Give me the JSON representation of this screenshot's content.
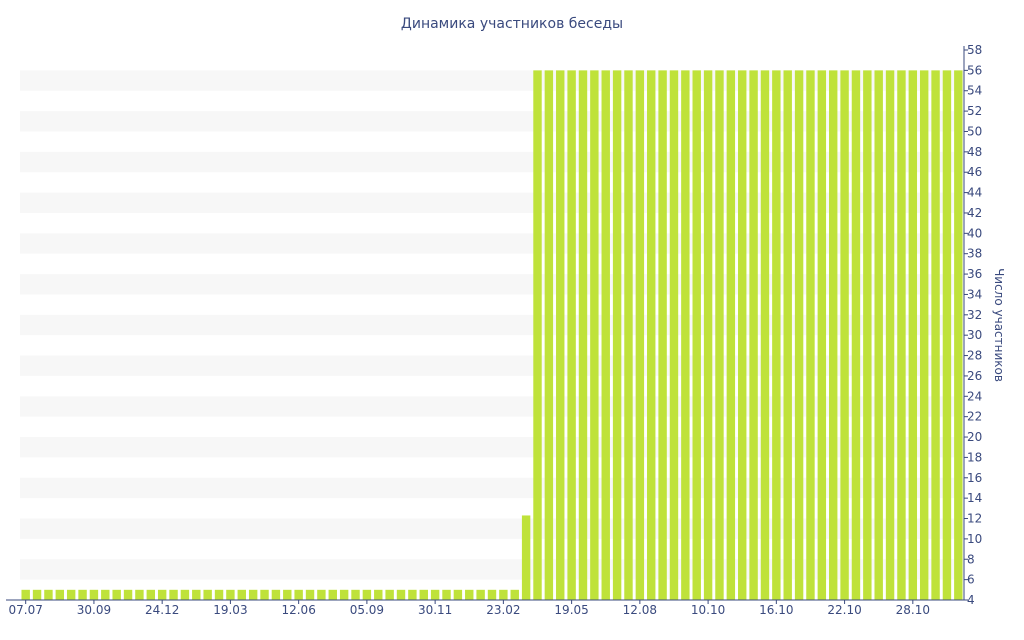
{
  "chart_data": {
    "type": "bar",
    "title": "Динамика участников беседы",
    "ylabel": "Число участников",
    "xlabel": "",
    "ylim": [
      4,
      58
    ],
    "yticks": [
      4,
      6,
      8,
      10,
      12,
      14,
      16,
      18,
      20,
      22,
      24,
      26,
      28,
      30,
      32,
      34,
      36,
      38,
      40,
      42,
      44,
      46,
      48,
      50,
      52,
      54,
      56,
      58
    ],
    "y_axis_position": "right",
    "grid": "alternating horizontal bands",
    "bar_color": "#bfe23a",
    "axis_color": "#3a4a7e",
    "band_color": "#f7f7f7",
    "xtick_labels": [
      {
        "label": "07.07",
        "index": 0
      },
      {
        "label": "30.09",
        "index": 6
      },
      {
        "label": "24.12",
        "index": 12
      },
      {
        "label": "19.03",
        "index": 18
      },
      {
        "label": "12.06",
        "index": 24
      },
      {
        "label": "05.09",
        "index": 30
      },
      {
        "label": "30.11",
        "index": 36
      },
      {
        "label": "23.02",
        "index": 42
      },
      {
        "label": "19.05",
        "index": 48
      },
      {
        "label": "12.08",
        "index": 54
      },
      {
        "label": "10.10",
        "index": 60
      },
      {
        "label": "16.10",
        "index": 66
      },
      {
        "label": "22.10",
        "index": 72
      },
      {
        "label": "28.10",
        "index": 78
      }
    ],
    "values": [
      5,
      5,
      5,
      5,
      5,
      5,
      5,
      5,
      5,
      5,
      5,
      5,
      5,
      5,
      5,
      5,
      5,
      5,
      5,
      5,
      5,
      5,
      5,
      5,
      5,
      5,
      5,
      5,
      5,
      5,
      5,
      5,
      5,
      5,
      5,
      5,
      5,
      5,
      5,
      5,
      5,
      5,
      5,
      5,
      12.3,
      56,
      56,
      56,
      56,
      56,
      56,
      56,
      56,
      56,
      56,
      56,
      56,
      56,
      56,
      56,
      56,
      56,
      56,
      56,
      56,
      56,
      56,
      56,
      56,
      56,
      56,
      56,
      56,
      56,
      56,
      56,
      56,
      56,
      56,
      56,
      56,
      56,
      56
    ]
  }
}
